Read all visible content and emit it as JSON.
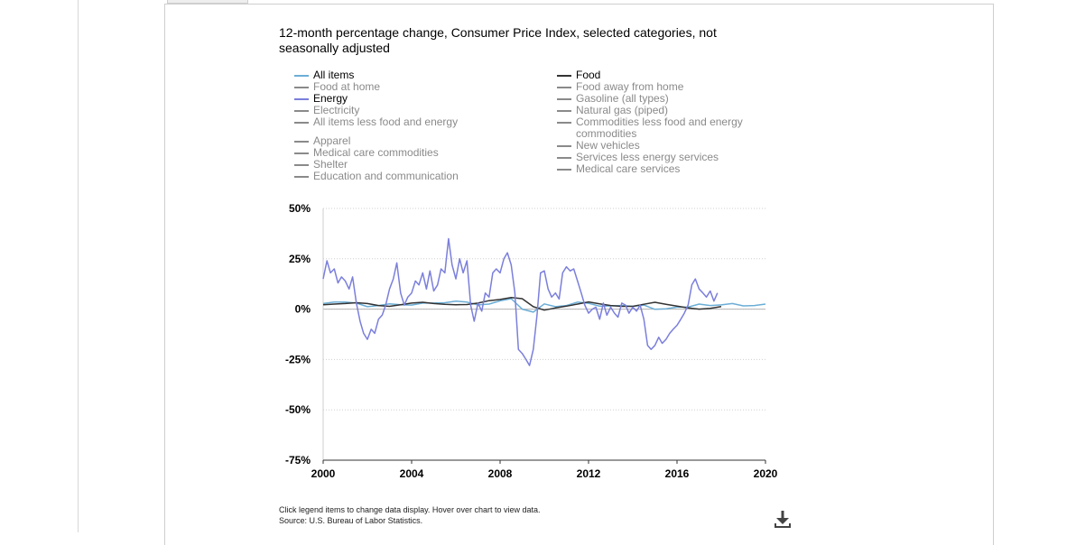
{
  "chart_data": {
    "type": "line",
    "title": "12-month percentage change, Consumer Price Index, selected categories, not seasonally adjusted",
    "xlim": [
      2000,
      2020
    ],
    "ylim": [
      -75,
      50
    ],
    "x_ticks": [
      "2000",
      "2004",
      "2008",
      "2012",
      "2016",
      "2020"
    ],
    "y_ticks": [
      "50%",
      "25%",
      "0%",
      "-25%",
      "-50%",
      "-75%"
    ],
    "grid": true,
    "legend_placement": "top",
    "legend": [
      {
        "name": "All items",
        "color": "#6baed6",
        "active": true,
        "column": 1
      },
      {
        "name": "Food at home",
        "color": "#8a8a8a",
        "active": false,
        "column": 1
      },
      {
        "name": "Energy",
        "color": "#7b7fdb",
        "active": true,
        "column": 1
      },
      {
        "name": "Electricity",
        "color": "#8a8a8a",
        "active": false,
        "column": 1
      },
      {
        "name": "All items less food and energy",
        "color": "#8a8a8a",
        "active": false,
        "column": 1
      },
      {
        "name": "Apparel",
        "color": "#8a8a8a",
        "active": false,
        "column": 1,
        "gap_before": true
      },
      {
        "name": "Medical care commodities",
        "color": "#8a8a8a",
        "active": false,
        "column": 1
      },
      {
        "name": "Shelter",
        "color": "#8a8a8a",
        "active": false,
        "column": 1
      },
      {
        "name": "Education and communication",
        "color": "#8a8a8a",
        "active": false,
        "column": 1
      },
      {
        "name": "Food",
        "color": "#333333",
        "active": true,
        "column": 2
      },
      {
        "name": "Food away from home",
        "color": "#8a8a8a",
        "active": false,
        "column": 2
      },
      {
        "name": "Gasoline (all types)",
        "color": "#8a8a8a",
        "active": false,
        "column": 2
      },
      {
        "name": "Natural gas (piped)",
        "color": "#8a8a8a",
        "active": false,
        "column": 2
      },
      {
        "name": "Commodities less food and energy commodities",
        "color": "#8a8a8a",
        "active": false,
        "column": 2
      },
      {
        "name": "New vehicles",
        "color": "#8a8a8a",
        "active": false,
        "column": 2
      },
      {
        "name": "Services less energy services",
        "color": "#8a8a8a",
        "active": false,
        "column": 2
      },
      {
        "name": "Medical care services",
        "color": "#8a8a8a",
        "active": false,
        "column": 2
      }
    ],
    "series": [
      {
        "name": "All items",
        "color": "#6baed6",
        "x": [
          2000.0,
          2000.5,
          2001.0,
          2001.5,
          2002.0,
          2002.5,
          2003.0,
          2003.5,
          2004.0,
          2004.5,
          2005.0,
          2005.5,
          2006.0,
          2006.5,
          2007.0,
          2007.5,
          2008.0,
          2008.5,
          2009.0,
          2009.5,
          2010.0,
          2010.5,
          2011.0,
          2011.5,
          2012.0,
          2012.5,
          2013.0,
          2013.5,
          2014.0,
          2014.5,
          2015.0,
          2015.5,
          2016.0,
          2016.5,
          2017.0,
          2017.5,
          2018.0,
          2018.5,
          2019.0,
          2019.5,
          2020.0
        ],
        "y": [
          2.8,
          3.5,
          3.5,
          3.0,
          1.2,
          1.8,
          2.6,
          2.2,
          2.0,
          3.0,
          3.0,
          3.2,
          4.0,
          3.5,
          2.1,
          2.5,
          4.1,
          5.2,
          0.0,
          -1.5,
          2.6,
          1.2,
          1.8,
          3.5,
          2.9,
          1.5,
          1.6,
          1.8,
          1.4,
          2.0,
          -0.1,
          0.2,
          1.0,
          1.0,
          2.5,
          1.8,
          2.1,
          2.8,
          1.6,
          1.8,
          2.5
        ]
      },
      {
        "name": "Food",
        "color": "#333333",
        "x": [
          2000.0,
          2000.5,
          2001.0,
          2001.5,
          2002.0,
          2002.5,
          2003.0,
          2003.5,
          2004.0,
          2004.5,
          2005.0,
          2005.5,
          2006.0,
          2006.5,
          2007.0,
          2007.5,
          2008.0,
          2008.5,
          2009.0,
          2009.5,
          2010.0,
          2010.5,
          2011.0,
          2011.5,
          2012.0,
          2012.5,
          2013.0,
          2013.5,
          2014.0,
          2014.5,
          2015.0,
          2015.5,
          2016.0,
          2016.5,
          2017.0,
          2017.5,
          2018.0
        ],
        "y": [
          2.2,
          2.5,
          2.8,
          3.2,
          2.8,
          1.8,
          1.4,
          2.2,
          3.0,
          3.4,
          2.8,
          2.4,
          2.2,
          2.3,
          3.0,
          4.2,
          4.8,
          5.8,
          5.2,
          1.2,
          -0.5,
          0.6,
          1.5,
          2.5,
          3.6,
          2.6,
          1.8,
          1.4,
          1.4,
          2.4,
          3.4,
          2.4,
          1.5,
          0.6,
          0.0,
          0.4,
          1.3
        ]
      },
      {
        "name": "Energy",
        "color": "#7b7fdb",
        "x": [
          2000.0,
          2000.17,
          2000.33,
          2000.5,
          2000.67,
          2000.83,
          2001.0,
          2001.17,
          2001.33,
          2001.5,
          2001.67,
          2001.83,
          2002.0,
          2002.17,
          2002.33,
          2002.5,
          2002.67,
          2002.83,
          2003.0,
          2003.17,
          2003.33,
          2003.5,
          2003.67,
          2003.83,
          2004.0,
          2004.17,
          2004.33,
          2004.5,
          2004.67,
          2004.83,
          2005.0,
          2005.17,
          2005.33,
          2005.5,
          2005.67,
          2005.83,
          2006.0,
          2006.17,
          2006.33,
          2006.5,
          2006.67,
          2006.83,
          2007.0,
          2007.17,
          2007.33,
          2007.5,
          2007.67,
          2007.83,
          2008.0,
          2008.17,
          2008.33,
          2008.5,
          2008.67,
          2008.83,
          2009.0,
          2009.17,
          2009.33,
          2009.5,
          2009.67,
          2009.83,
          2010.0,
          2010.17,
          2010.33,
          2010.5,
          2010.67,
          2010.83,
          2011.0,
          2011.17,
          2011.33,
          2011.5,
          2011.67,
          2011.83,
          2012.0,
          2012.17,
          2012.33,
          2012.5,
          2012.67,
          2012.83,
          2013.0,
          2013.17,
          2013.33,
          2013.5,
          2013.67,
          2013.83,
          2014.0,
          2014.17,
          2014.33,
          2014.5,
          2014.67,
          2014.83,
          2015.0,
          2015.17,
          2015.33,
          2015.5,
          2015.67,
          2015.83,
          2016.0,
          2016.17,
          2016.33,
          2016.5,
          2016.67,
          2016.83,
          2017.0,
          2017.17,
          2017.33,
          2017.5,
          2017.67,
          2017.83
        ],
        "y": [
          15,
          24,
          18,
          20,
          13,
          16,
          14,
          10,
          16,
          3,
          -6,
          -12,
          -15,
          -10,
          -12,
          -5,
          -3,
          2,
          10,
          15,
          23,
          8,
          2,
          6,
          8,
          14,
          12,
          18,
          10,
          19,
          9,
          12,
          20,
          18,
          35,
          22,
          15,
          25,
          18,
          24,
          2,
          -6,
          3,
          -1,
          8,
          6,
          18,
          20,
          18,
          25,
          28,
          22,
          8,
          -20,
          -22,
          -25,
          -28,
          -20,
          -3,
          18,
          19,
          10,
          6,
          8,
          5,
          18,
          21,
          19,
          20,
          14,
          8,
          2,
          -2,
          0,
          1,
          -5,
          3,
          -3,
          1,
          -2,
          -4,
          3,
          2,
          -2,
          1,
          -1,
          2,
          -5,
          -18,
          -20,
          -18,
          -14,
          -17,
          -15,
          -12,
          -10,
          -8,
          -5,
          -2,
          2,
          12,
          15,
          10,
          8,
          6,
          9,
          4,
          8
        ]
      }
    ],
    "note_line1": "Click legend items to change data display. Hover over chart to view data.",
    "note_line2": "Source: U.S. Bureau of Labor Statistics."
  },
  "icons": {
    "download": "download-icon"
  }
}
